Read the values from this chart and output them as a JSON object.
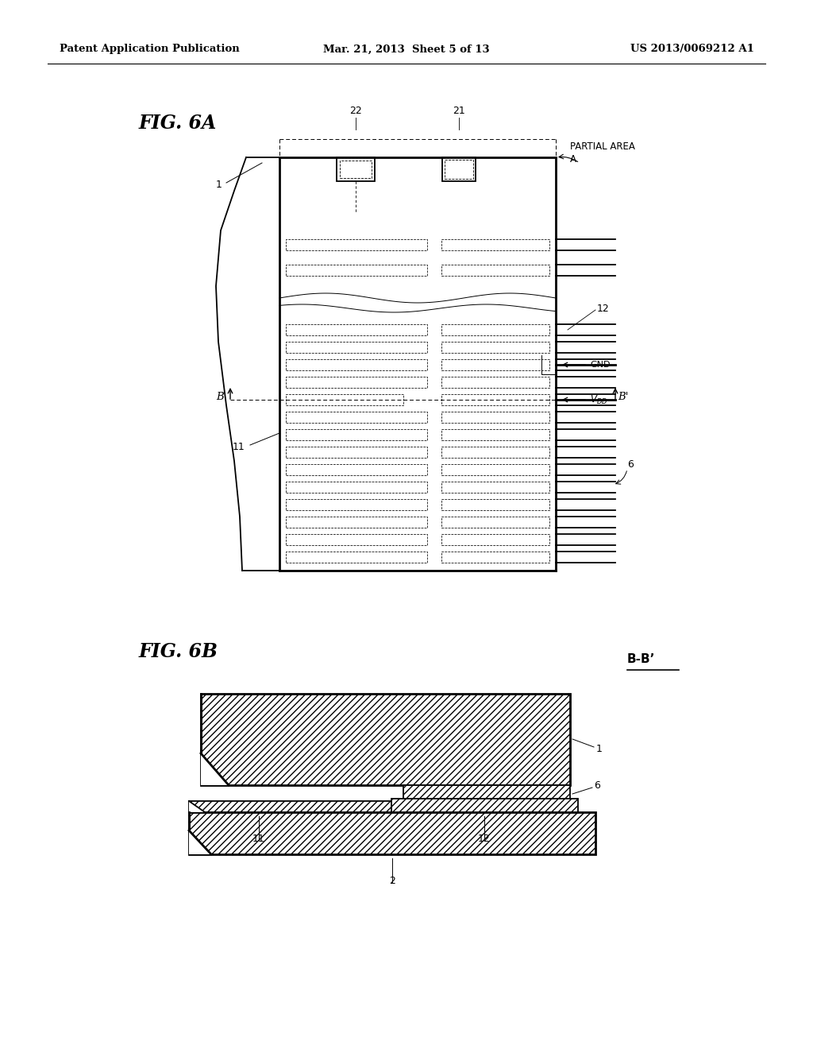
{
  "bg_color": "#ffffff",
  "header_left": "Patent Application Publication",
  "header_mid": "Mar. 21, 2013  Sheet 5 of 13",
  "header_right": "US 2013/0069212 A1",
  "fig6a_label": "FIG. 6A",
  "fig6b_label": "FIG. 6B",
  "fig6b_section_label": "B-B’",
  "lw_thin": 0.7,
  "lw_med": 1.3,
  "lw_thick": 2.0
}
